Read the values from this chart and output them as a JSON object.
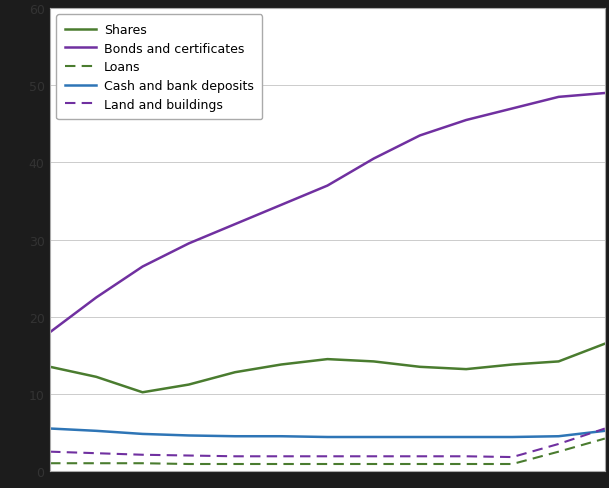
{
  "shares": [
    13.5,
    12.2,
    10.2,
    11.2,
    12.8,
    13.8,
    14.5,
    14.2,
    13.5,
    13.2,
    13.8,
    14.2,
    16.5
  ],
  "bonds": [
    18.0,
    22.5,
    26.5,
    29.5,
    32.0,
    34.5,
    37.0,
    40.5,
    43.5,
    45.5,
    47.0,
    48.5,
    49.0
  ],
  "loans": [
    1.0,
    1.0,
    1.0,
    0.9,
    0.9,
    0.9,
    0.9,
    0.9,
    0.9,
    0.9,
    0.9,
    2.5,
    4.2
  ],
  "cash": [
    5.5,
    5.2,
    4.8,
    4.6,
    4.5,
    4.5,
    4.4,
    4.4,
    4.4,
    4.4,
    4.4,
    4.5,
    5.2
  ],
  "land": [
    2.5,
    2.3,
    2.1,
    2.0,
    1.9,
    1.9,
    1.9,
    1.9,
    1.9,
    1.9,
    1.8,
    3.5,
    5.5
  ],
  "shares_color": "#4a7c2f",
  "bonds_color": "#7030a0",
  "loans_color": "#4a7c2f",
  "cash_color": "#2e75b6",
  "land_color": "#7030a0",
  "ylim": [
    0,
    60
  ],
  "yticks": [
    0,
    10,
    20,
    30,
    40,
    50,
    60
  ],
  "legend_labels": [
    "Shares",
    "Bonds and certificates",
    "Loans",
    "Cash and bank deposits",
    "Land and buildings"
  ],
  "background_color": "#ffffff",
  "figure_bg": "#1c1c1c",
  "grid_color": "#cccccc"
}
